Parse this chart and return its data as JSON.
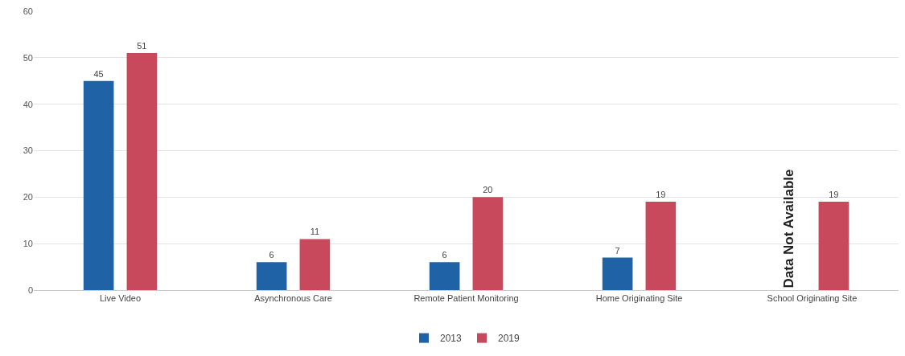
{
  "chart_data": {
    "type": "bar",
    "categories": [
      "Live Video",
      "Asynchronous Care",
      "Remote Patient Monitoring",
      "Home Originating Site",
      "School Originating Site"
    ],
    "series": [
      {
        "name": "2013",
        "color": "#1f62a6",
        "values": [
          45,
          6,
          6,
          7,
          null
        ]
      },
      {
        "name": "2019",
        "color": "#c9495c",
        "values": [
          51,
          11,
          20,
          19,
          19
        ]
      }
    ],
    "ylim": [
      0,
      60
    ],
    "yticks": [
      0,
      10,
      20,
      30,
      40,
      50,
      60
    ],
    "grid": "y",
    "legend": "bottom",
    "data_labels": true,
    "annotations": [
      "Data Not Available"
    ]
  }
}
